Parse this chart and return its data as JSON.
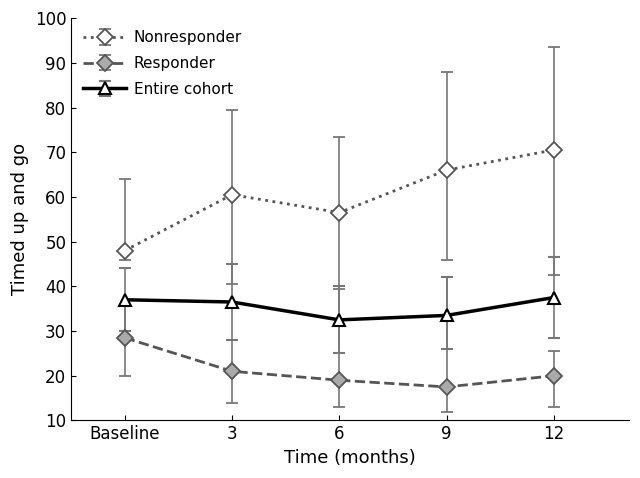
{
  "x_positions": [
    0,
    1,
    2,
    3,
    4
  ],
  "x_labels": [
    "Baseline",
    "3",
    "6",
    "9",
    "12"
  ],
  "xlabel": "Time (months)",
  "ylabel": "Timed up and go",
  "ylim": [
    10,
    100
  ],
  "yticks": [
    10,
    20,
    30,
    40,
    50,
    60,
    70,
    80,
    90,
    100
  ],
  "nonresponder": {
    "y": [
      48.0,
      60.5,
      56.5,
      66.0,
      70.5
    ],
    "err_lo": [
      2.0,
      20.0,
      17.0,
      20.0,
      28.0
    ],
    "err_hi": [
      16.0,
      19.0,
      17.0,
      22.0,
      23.0
    ],
    "label": "Nonresponder",
    "color": "#555555",
    "linestyle": "dotted",
    "linewidth": 2.0,
    "marker": "D",
    "markersize": 8,
    "markerfacecolor": "white",
    "markeredgecolor": "#555555",
    "ecolor": "#777777"
  },
  "responder": {
    "y": [
      28.5,
      21.0,
      19.0,
      17.5,
      20.0
    ],
    "err_lo": [
      8.5,
      7.0,
      6.0,
      5.5,
      7.0
    ],
    "err_hi": [
      7.0,
      7.0,
      21.0,
      24.5,
      5.5
    ],
    "label": "Responder",
    "color": "#555555",
    "linestyle": "dashed",
    "linewidth": 2.0,
    "marker": "D",
    "markersize": 8,
    "markerfacecolor": "#aaaaaa",
    "markeredgecolor": "#555555",
    "ecolor": "#777777"
  },
  "entire_cohort": {
    "y": [
      37.0,
      36.5,
      32.5,
      33.5,
      37.5
    ],
    "err_lo": [
      7.0,
      8.5,
      7.5,
      7.5,
      9.0
    ],
    "err_hi": [
      7.0,
      8.5,
      7.5,
      8.5,
      9.0
    ],
    "label": "Entire cohort",
    "color": "#000000",
    "linestyle": "solid",
    "linewidth": 2.5,
    "marker": "^",
    "markersize": 9,
    "markerfacecolor": "white",
    "markeredgecolor": "#000000",
    "ecolor": "#777777"
  },
  "legend_fontsize": 11,
  "axis_fontsize": 13,
  "tick_fontsize": 12,
  "figsize": [
    6.4,
    4.78
  ],
  "dpi": 100
}
